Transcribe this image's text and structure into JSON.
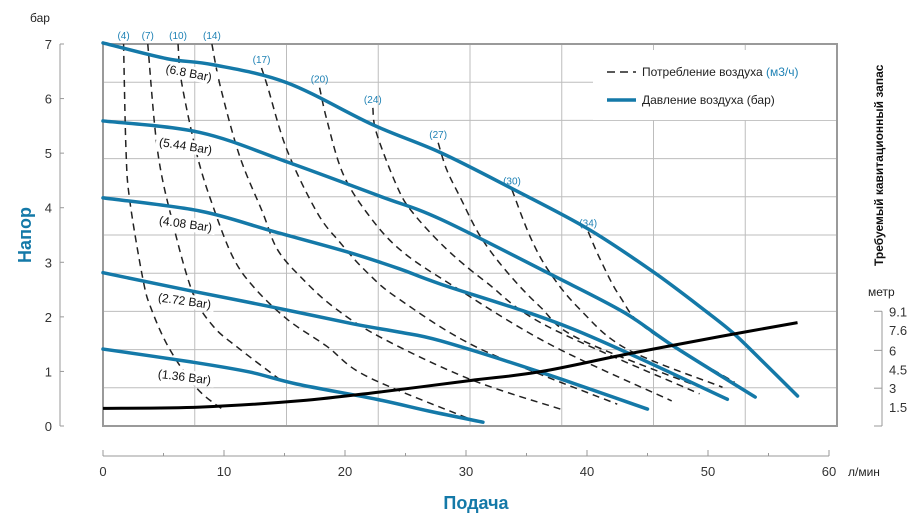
{
  "chart_data": {
    "type": "line",
    "xlabel": "Подача",
    "x_unit": "л/мин",
    "ylabel": "Напор",
    "y_unit": "бар",
    "y2label": "Требуемый кавитационный запас",
    "y2_unit": "метр",
    "xlim": [
      0,
      60
    ],
    "ylim": [
      0,
      7
    ],
    "y2lim": [
      0,
      30.3
    ],
    "x_ticks": [
      0,
      10,
      20,
      30,
      40,
      50,
      60
    ],
    "y_ticks": [
      0,
      1,
      2,
      3,
      4,
      5,
      6,
      7
    ],
    "y2_ticks": [
      "1.5",
      "3",
      "4.5",
      "6",
      "7.6",
      "9.1"
    ],
    "grid": true,
    "legend": {
      "placement": "top-right",
      "items": [
        {
          "text": "Потребление воздуха ",
          "unit": "(м3/ч)",
          "style": "dashed"
        },
        {
          "text": "Давление воздуха (бар)",
          "style": "solid"
        }
      ]
    },
    "colors": {
      "pressure": "#1479a8",
      "air": "#222222",
      "npsh": "#000000",
      "air_label": "#1f82b5",
      "grid": "#bdbdbd",
      "frame": "#9a9a9a"
    },
    "pressure_curves": [
      {
        "label": "(6.8 Bar)",
        "points": [
          [
            0,
            7.02
          ],
          [
            5.3,
            6.73
          ],
          [
            9.1,
            6.62
          ],
          [
            15.2,
            6.29
          ],
          [
            22.3,
            5.52
          ],
          [
            27.9,
            5.01
          ],
          [
            33.9,
            4.34
          ],
          [
            40.1,
            3.61
          ],
          [
            45.5,
            2.82
          ],
          [
            49.9,
            2.09
          ],
          [
            52.1,
            1.7
          ],
          [
            54.3,
            1.23
          ],
          [
            57.4,
            0.55
          ]
        ]
      },
      {
        "label": "(5.44 Bar)",
        "points": [
          [
            0,
            5.59
          ],
          [
            8,
            5.38
          ],
          [
            15.2,
            4.84
          ],
          [
            22.9,
            4.21
          ],
          [
            27.9,
            3.79
          ],
          [
            36.9,
            2.79
          ],
          [
            43,
            2.09
          ],
          [
            47.1,
            1.47
          ],
          [
            53.9,
            0.53
          ]
        ]
      },
      {
        "label": "(4.08 Bar)",
        "points": [
          [
            0,
            4.18
          ],
          [
            8,
            3.94
          ],
          [
            14,
            3.57
          ],
          [
            20.2,
            3.19
          ],
          [
            24.5,
            2.88
          ],
          [
            27.9,
            2.6
          ],
          [
            38.8,
            1.78
          ],
          [
            51.6,
            0.49
          ]
        ]
      },
      {
        "label": "(2.72 Bar)",
        "points": [
          [
            0,
            2.81
          ],
          [
            7.4,
            2.47
          ],
          [
            14,
            2.18
          ],
          [
            20.7,
            1.87
          ],
          [
            24.5,
            1.72
          ],
          [
            27.9,
            1.56
          ],
          [
            36.1,
            0.99
          ],
          [
            45,
            0.31
          ]
        ]
      },
      {
        "label": "(1.36 Bar)",
        "points": [
          [
            0,
            1.41
          ],
          [
            7.4,
            1.17
          ],
          [
            12.1,
            0.99
          ],
          [
            16,
            0.77
          ],
          [
            22.6,
            0.49
          ],
          [
            27,
            0.27
          ],
          [
            31.4,
            0.07
          ]
        ]
      }
    ],
    "air_curves": [
      {
        "label": "(4)",
        "points": [
          [
            1.7,
            7.0
          ],
          [
            1.9,
            5.06
          ],
          [
            2.2,
            4.15
          ],
          [
            3.3,
            2.69
          ],
          [
            4.0,
            2.14
          ],
          [
            5.5,
            1.41
          ],
          [
            7.8,
            0.68
          ],
          [
            10.1,
            0.27
          ]
        ]
      },
      {
        "label": "(7)",
        "points": [
          [
            3.7,
            7.0
          ],
          [
            4.5,
            5.06
          ],
          [
            5.7,
            3.78
          ],
          [
            7.4,
            2.45
          ],
          [
            9.1,
            1.83
          ],
          [
            11.3,
            1.41
          ],
          [
            14.8,
            0.82
          ]
        ]
      },
      {
        "label": "(10)",
        "points": [
          [
            6.2,
            7.0
          ],
          [
            6.5,
            6.29
          ],
          [
            7.8,
            4.94
          ],
          [
            9.1,
            4.02
          ],
          [
            10.7,
            3.11
          ],
          [
            12.4,
            2.56
          ],
          [
            15.2,
            1.96
          ],
          [
            18.5,
            1.46
          ],
          [
            21.8,
            0.91
          ],
          [
            30.3,
            0.13
          ]
        ]
      },
      {
        "label": "(14)",
        "points": [
          [
            9.0,
            7.0
          ],
          [
            9.7,
            6.22
          ],
          [
            11.3,
            4.94
          ],
          [
            13.2,
            3.91
          ],
          [
            14.4,
            3.24
          ],
          [
            16.3,
            2.74
          ],
          [
            19.0,
            2.19
          ],
          [
            22.9,
            1.63
          ],
          [
            30.3,
            0.86
          ],
          [
            37.8,
            0.31
          ]
        ]
      },
      {
        "label": "(17)",
        "points": [
          [
            13.1,
            6.56
          ],
          [
            13.6,
            6.22
          ],
          [
            15.2,
            5.06
          ],
          [
            17.7,
            3.91
          ],
          [
            19.6,
            3.36
          ],
          [
            21.8,
            2.82
          ],
          [
            24.5,
            2.32
          ],
          [
            31.2,
            1.41
          ],
          [
            42.5,
            0.4
          ]
        ]
      },
      {
        "label": "(20)",
        "points": [
          [
            17.9,
            6.2
          ],
          [
            18.5,
            5.61
          ],
          [
            19.8,
            4.64
          ],
          [
            21.8,
            3.91
          ],
          [
            24.5,
            3.24
          ],
          [
            28.7,
            2.6
          ],
          [
            36.9,
            1.5
          ],
          [
            47.0,
            0.46
          ]
        ]
      },
      {
        "label": "(24)",
        "points": [
          [
            22.3,
            5.83
          ],
          [
            22.6,
            5.37
          ],
          [
            24.3,
            4.39
          ],
          [
            25.6,
            3.91
          ],
          [
            28.4,
            3.24
          ],
          [
            31.7,
            2.63
          ],
          [
            36.7,
            1.83
          ],
          [
            49.3,
            0.59
          ]
        ]
      },
      {
        "label": "(27)",
        "points": [
          [
            27.7,
            5.19
          ],
          [
            28.4,
            4.7
          ],
          [
            29.5,
            4.2
          ],
          [
            31.2,
            3.47
          ],
          [
            33.4,
            2.82
          ],
          [
            36.1,
            2.19
          ],
          [
            39.4,
            1.59
          ],
          [
            50.2,
            0.64
          ]
        ]
      },
      {
        "label": "(30)",
        "points": [
          [
            33.8,
            4.33
          ],
          [
            35.3,
            3.47
          ],
          [
            36.9,
            2.82
          ],
          [
            39.4,
            2.14
          ],
          [
            43.3,
            1.41
          ],
          [
            51.2,
            0.71
          ]
        ]
      },
      {
        "label": "(34)",
        "points": [
          [
            40.1,
            3.56
          ],
          [
            41.1,
            3.05
          ],
          [
            42.7,
            2.38
          ],
          [
            45.0,
            1.77
          ],
          [
            52.2,
            0.8
          ]
        ]
      }
    ],
    "npsh_curve_m": [
      [
        0,
        1.4
      ],
      [
        8,
        1.5
      ],
      [
        16.3,
        2.0
      ],
      [
        22.9,
        2.7
      ],
      [
        30.3,
        3.6
      ],
      [
        36.1,
        4.3
      ],
      [
        43.3,
        5.7
      ],
      [
        51,
        7.1
      ],
      [
        57.4,
        8.2
      ]
    ]
  }
}
